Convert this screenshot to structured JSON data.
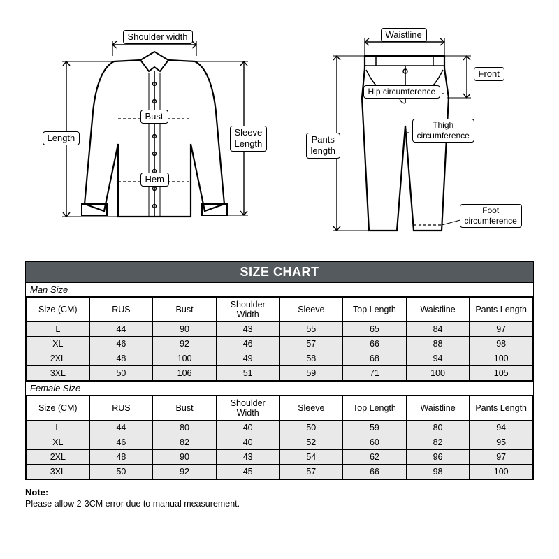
{
  "diagrams": {
    "shirt": {
      "shoulder_width": "Shoulder width",
      "bust": "Bust",
      "hem": "Hem",
      "length": "Length",
      "sleeve_length": "Sleeve\nLength"
    },
    "pants": {
      "waistline": "Waistline",
      "front": "Front",
      "hip": "Hip circumference",
      "thigh": "Thigh\ncircumference",
      "pants_length": "Pants\nlength",
      "foot": "Foot\ncircumference"
    }
  },
  "chart": {
    "title": "SIZE CHART",
    "sections": [
      {
        "heading": "Man Size",
        "columns": [
          "Size (CM)",
          "RUS",
          "Bust",
          "Shoulder Width",
          "Sleeve",
          "Top Length",
          "Waistline",
          "Pants Length"
        ],
        "rows": [
          [
            "L",
            "44",
            "90",
            "43",
            "55",
            "65",
            "84",
            "97"
          ],
          [
            "XL",
            "46",
            "92",
            "46",
            "57",
            "66",
            "88",
            "98"
          ],
          [
            "2XL",
            "48",
            "100",
            "49",
            "58",
            "68",
            "94",
            "100"
          ],
          [
            "3XL",
            "50",
            "106",
            "51",
            "59",
            "71",
            "100",
            "105"
          ]
        ]
      },
      {
        "heading": "Female Size",
        "columns": [
          "Size (CM)",
          "RUS",
          "Bust",
          "Shoulder Width",
          "Sleeve",
          "Top Length",
          "Waistline",
          "Pants Length"
        ],
        "rows": [
          [
            "L",
            "44",
            "80",
            "40",
            "50",
            "59",
            "80",
            "94"
          ],
          [
            "XL",
            "46",
            "82",
            "40",
            "52",
            "60",
            "82",
            "95"
          ],
          [
            "2XL",
            "48",
            "90",
            "43",
            "54",
            "62",
            "96",
            "97"
          ],
          [
            "3XL",
            "50",
            "92",
            "45",
            "57",
            "66",
            "98",
            "100"
          ]
        ]
      }
    ]
  },
  "note": {
    "head": "Note:",
    "body": "Please allow 2-3CM error due to manual measurement."
  },
  "style": {
    "title_bg": "#555a5e",
    "cell_bg": "#e9e9e9",
    "border_color": "#000000",
    "text_color": "#000000",
    "font_family": "Arial"
  }
}
